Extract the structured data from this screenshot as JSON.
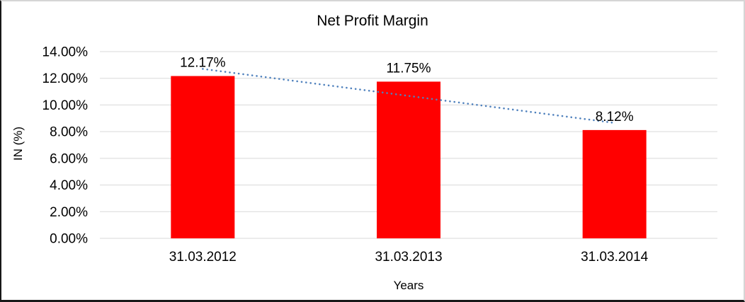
{
  "window": {
    "background": "#ffffff",
    "border_dark": "#171717",
    "border_light": "#d5d5d5"
  },
  "chart_data": {
    "type": "bar",
    "title": "Net Profit Margin",
    "xlabel": "Years",
    "ylabel": "IN (%)",
    "categories": [
      "31.03.2012",
      "31.03.2013",
      "31.03.2014"
    ],
    "values": [
      12.17,
      11.75,
      8.12
    ],
    "data_labels": [
      "12.17%",
      "11.75%",
      "8.12%"
    ],
    "y_ticks": [
      "0.00%",
      "2.00%",
      "4.00%",
      "6.00%",
      "8.00%",
      "10.00%",
      "12.00%",
      "14.00%"
    ],
    "ylim": [
      0,
      14
    ],
    "y_step": 2,
    "bar_color": "#ff0000",
    "gridlines": true,
    "gridline_color": "#d9d9d9",
    "text_color": "#000000",
    "legend": "none",
    "trendline": {
      "type": "linear",
      "style": "dotted",
      "color": "#4f81bd"
    }
  }
}
